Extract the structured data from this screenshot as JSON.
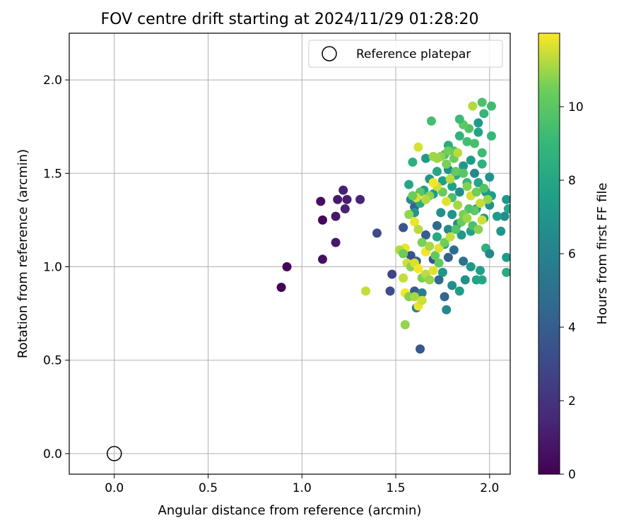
{
  "chart_data": {
    "type": "scatter",
    "title": "FOV centre drift starting at 2024/11/29 01:28:20",
    "xlabel": "Angular distance from reference (arcmin)",
    "ylabel": "Rotation from reference (arcmin)",
    "xlim": [
      -0.24,
      2.11
    ],
    "ylim": [
      -0.11,
      2.25
    ],
    "xticks": [
      "0.0",
      "0.5",
      "1.0",
      "1.5",
      "2.0"
    ],
    "yticks": [
      "0.0",
      "0.5",
      "1.0",
      "1.5",
      "2.0"
    ],
    "grid": true,
    "legend": {
      "placement": "top-right",
      "entries": [
        "Reference platepar"
      ]
    },
    "reference_point": {
      "label": "Reference platepar",
      "x": 0.0,
      "y": 0.0
    },
    "colorbar": {
      "label": "Hours from first FF file",
      "range": [
        0,
        12
      ],
      "ticks": [
        "0",
        "2",
        "4",
        "6",
        "8",
        "10"
      ],
      "colormap": "viridis"
    },
    "series": [
      {
        "color_key": "hours",
        "points": [
          [
            0.89,
            0.89,
            0.0
          ],
          [
            0.92,
            1.0,
            0.2
          ],
          [
            1.1,
            1.35,
            0.5
          ],
          [
            1.11,
            1.25,
            0.3
          ],
          [
            1.11,
            1.04,
            0.6
          ],
          [
            1.18,
            1.13,
            0.9
          ],
          [
            1.18,
            1.27,
            0.8
          ],
          [
            1.19,
            1.36,
            1.0
          ],
          [
            1.22,
            1.41,
            1.2
          ],
          [
            1.24,
            1.36,
            1.1
          ],
          [
            1.23,
            1.31,
            1.3
          ],
          [
            1.31,
            1.36,
            1.4
          ],
          [
            1.4,
            1.18,
            3.0
          ],
          [
            1.47,
            0.87,
            3.2
          ],
          [
            1.48,
            0.96,
            2.8
          ],
          [
            1.54,
            1.21,
            3.6
          ],
          [
            1.58,
            1.06,
            3.4
          ],
          [
            1.6,
            0.87,
            3.9
          ],
          [
            1.63,
            0.56,
            3.7
          ],
          [
            1.61,
            1.03,
            4.1
          ],
          [
            1.6,
            1.32,
            4.3
          ],
          [
            1.66,
            1.17,
            4.0
          ],
          [
            1.7,
            1.04,
            3.5
          ],
          [
            1.72,
            1.22,
            4.5
          ],
          [
            1.78,
            1.05,
            4.2
          ],
          [
            1.73,
            0.93,
            4.6
          ],
          [
            1.76,
            0.84,
            4.4
          ],
          [
            1.81,
            1.09,
            4.8
          ],
          [
            1.86,
            1.03,
            5.0
          ],
          [
            1.61,
            0.78,
            6.0
          ],
          [
            1.64,
            0.86,
            5.8
          ],
          [
            1.75,
            0.97,
            7.0
          ],
          [
            1.77,
            0.77,
            6.4
          ],
          [
            1.8,
            0.9,
            6.6
          ],
          [
            1.84,
            0.87,
            7.4
          ],
          [
            1.87,
            0.93,
            6.8
          ],
          [
            1.9,
            1.0,
            7.2
          ],
          [
            1.93,
            0.93,
            7.8
          ],
          [
            1.95,
            0.98,
            7.6
          ],
          [
            1.96,
            0.93,
            8.0
          ],
          [
            1.98,
            1.1,
            8.6
          ],
          [
            2.0,
            1.07,
            6.2
          ],
          [
            2.06,
            1.19,
            7.0
          ],
          [
            2.09,
            1.05,
            7.4
          ],
          [
            2.09,
            0.97,
            8.2
          ],
          [
            2.08,
            1.27,
            6.6
          ],
          [
            2.09,
            1.36,
            7.1
          ],
          [
            2.1,
            1.31,
            7.9
          ],
          [
            2.04,
            1.27,
            7.3
          ],
          [
            2.0,
            1.33,
            6.8
          ],
          [
            1.97,
            1.26,
            7.5
          ],
          [
            1.93,
            1.31,
            6.9
          ],
          [
            1.9,
            1.19,
            7.7
          ],
          [
            1.85,
            1.17,
            7.2
          ],
          [
            1.83,
            1.23,
            6.3
          ],
          [
            1.8,
            1.28,
            7.0
          ],
          [
            1.78,
            1.2,
            6.5
          ],
          [
            1.76,
            1.12,
            7.8
          ],
          [
            1.74,
            1.29,
            6.7
          ],
          [
            1.72,
            1.16,
            8.1
          ],
          [
            1.7,
            1.39,
            7.4
          ],
          [
            1.68,
            1.47,
            6.9
          ],
          [
            1.65,
            1.41,
            7.6
          ],
          [
            1.63,
            1.34,
            8.3
          ],
          [
            1.6,
            1.29,
            7.1
          ],
          [
            1.58,
            1.36,
            6.4
          ],
          [
            1.57,
            1.44,
            7.9
          ],
          [
            1.59,
            1.56,
            8.5
          ],
          [
            1.66,
            1.58,
            7.3
          ],
          [
            1.69,
            1.78,
            9.4
          ],
          [
            1.72,
            1.51,
            8.0
          ],
          [
            1.75,
            1.46,
            7.5
          ],
          [
            1.78,
            1.52,
            6.8
          ],
          [
            1.8,
            1.43,
            7.7
          ],
          [
            1.82,
            1.49,
            8.2
          ],
          [
            1.84,
            1.4,
            6.6
          ],
          [
            1.86,
            1.54,
            7.0
          ],
          [
            1.88,
            1.45,
            8.8
          ],
          [
            1.9,
            1.57,
            7.4
          ],
          [
            1.92,
            1.5,
            6.3
          ],
          [
            1.94,
            1.45,
            7.9
          ],
          [
            1.96,
            1.55,
            8.6
          ],
          [
            1.98,
            1.4,
            7.1
          ],
          [
            2.0,
            1.48,
            6.9
          ],
          [
            2.01,
            1.38,
            7.5
          ],
          [
            1.96,
            1.61,
            9.2
          ],
          [
            1.94,
            1.72,
            7.8
          ],
          [
            1.92,
            1.66,
            9.5
          ],
          [
            1.94,
            1.77,
            7.3
          ],
          [
            1.97,
            1.82,
            8.9
          ],
          [
            1.96,
            1.88,
            9.6
          ],
          [
            2.01,
            1.86,
            9.3
          ],
          [
            1.91,
            1.86,
            11.2
          ],
          [
            2.01,
            1.7,
            9.0
          ],
          [
            1.89,
            1.74,
            9.7
          ],
          [
            1.86,
            1.76,
            10.1
          ],
          [
            1.84,
            1.79,
            9.2
          ],
          [
            1.88,
            1.67,
            9.4
          ],
          [
            1.84,
            1.7,
            8.7
          ],
          [
            1.81,
            1.62,
            9.8
          ],
          [
            1.81,
            1.58,
            10.4
          ],
          [
            1.78,
            1.65,
            8.3
          ],
          [
            1.76,
            1.6,
            9.6
          ],
          [
            1.74,
            1.59,
            10.8
          ],
          [
            1.72,
            1.58,
            11.0
          ],
          [
            1.77,
            1.55,
            10.6
          ],
          [
            1.79,
            1.47,
            11.3
          ],
          [
            1.82,
            1.51,
            10.2
          ],
          [
            1.86,
            1.5,
            9.9
          ],
          [
            1.88,
            1.43,
            10.7
          ],
          [
            1.9,
            1.38,
            11.6
          ],
          [
            1.93,
            1.4,
            10.5
          ],
          [
            1.97,
            1.42,
            9.8
          ],
          [
            1.99,
            1.36,
            10.9
          ],
          [
            1.95,
            1.34,
            11.4
          ],
          [
            1.92,
            1.3,
            10.1
          ],
          [
            1.89,
            1.31,
            9.7
          ],
          [
            1.86,
            1.28,
            10.6
          ],
          [
            1.83,
            1.33,
            11.1
          ],
          [
            1.8,
            1.37,
            9.5
          ],
          [
            1.77,
            1.35,
            11.7
          ],
          [
            1.75,
            1.4,
            10.3
          ],
          [
            1.72,
            1.43,
            11.5
          ],
          [
            1.7,
            1.45,
            11.9
          ],
          [
            1.68,
            1.38,
            10.8
          ],
          [
            1.66,
            1.36,
            11.2
          ],
          [
            1.63,
            1.4,
            10.0
          ],
          [
            1.61,
            1.37,
            11.6
          ],
          [
            1.59,
            1.38,
            10.4
          ],
          [
            1.57,
            1.28,
            10.9
          ],
          [
            1.6,
            1.24,
            11.8
          ],
          [
            1.62,
            1.2,
            11.3
          ],
          [
            1.64,
            1.13,
            10.6
          ],
          [
            1.66,
            1.08,
            11.9
          ],
          [
            1.68,
            1.11,
            11.1
          ],
          [
            1.71,
            1.06,
            10.2
          ],
          [
            1.73,
            1.1,
            11.7
          ],
          [
            1.76,
            1.13,
            10.5
          ],
          [
            1.79,
            1.16,
            11.4
          ],
          [
            1.82,
            1.2,
            9.8
          ],
          [
            1.85,
            1.24,
            10.3
          ],
          [
            1.88,
            1.26,
            11.0
          ],
          [
            1.91,
            1.22,
            9.6
          ],
          [
            1.94,
            1.2,
            10.8
          ],
          [
            1.96,
            1.25,
            11.5
          ],
          [
            1.55,
            1.1,
            11.8
          ],
          [
            1.52,
            1.09,
            11.2
          ],
          [
            1.54,
            1.07,
            10.4
          ],
          [
            1.56,
            1.02,
            11.5
          ],
          [
            1.58,
            1.0,
            10.8
          ],
          [
            1.6,
            1.02,
            11.6
          ],
          [
            1.62,
            0.99,
            11.9
          ],
          [
            1.64,
            0.94,
            10.6
          ],
          [
            1.66,
            0.96,
            11.3
          ],
          [
            1.68,
            0.93,
            10.9
          ],
          [
            1.7,
            0.98,
            11.7
          ],
          [
            1.73,
            1.02,
            10.2
          ],
          [
            1.54,
            0.94,
            11.4
          ],
          [
            1.55,
            0.86,
            11.9
          ],
          [
            1.57,
            0.84,
            10.7
          ],
          [
            1.6,
            0.84,
            11.1
          ],
          [
            1.62,
            0.79,
            11.8
          ],
          [
            1.64,
            0.82,
            11.5
          ],
          [
            1.55,
            0.69,
            10.9
          ],
          [
            1.34,
            0.87,
            11.4
          ],
          [
            1.62,
            1.64,
            11.6
          ],
          [
            1.7,
            1.59,
            11.0
          ],
          [
            1.78,
            1.62,
            10.5
          ],
          [
            1.83,
            1.61,
            11.3
          ]
        ]
      }
    ]
  }
}
